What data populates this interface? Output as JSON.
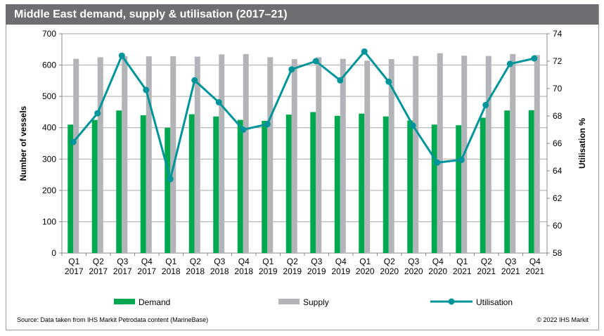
{
  "chart_data": {
    "type": "bar",
    "title": "Middle East demand, supply & utilisation (2017–21)",
    "ylabel": "Number of vessels",
    "y2label": "Utilisation %",
    "ylim": [
      0,
      700
    ],
    "y2lim": [
      58,
      74
    ],
    "yticks": [
      0,
      100,
      200,
      300,
      400,
      500,
      600,
      700
    ],
    "y2ticks": [
      58,
      60,
      62,
      64,
      66,
      68,
      70,
      72,
      74
    ],
    "grid": true,
    "legend": "bottom",
    "categories": [
      [
        "Q1",
        "2017"
      ],
      [
        "Q2",
        "2017"
      ],
      [
        "Q3",
        "2017"
      ],
      [
        "Q4",
        "2017"
      ],
      [
        "Q1",
        "2018"
      ],
      [
        "Q2",
        "2018"
      ],
      [
        "Q3",
        "2018"
      ],
      [
        "Q4",
        "2018"
      ],
      [
        "Q1",
        "2019"
      ],
      [
        "Q2",
        "2019"
      ],
      [
        "Q3",
        "2019"
      ],
      [
        "Q4",
        "2019"
      ],
      [
        "Q1",
        "2020"
      ],
      [
        "Q2",
        "2020"
      ],
      [
        "Q3",
        "2020"
      ],
      [
        "Q4",
        "2020"
      ],
      [
        "Q1",
        "2021"
      ],
      [
        "Q2",
        "2021"
      ],
      [
        "Q3",
        "2021"
      ],
      [
        "Q4",
        "2021"
      ]
    ],
    "series": [
      {
        "name": "Demand",
        "type": "bar",
        "axis": "left",
        "color": "#00a84f",
        "values": [
          410,
          425,
          455,
          440,
          400,
          443,
          436,
          425,
          422,
          442,
          450,
          438,
          445,
          436,
          423,
          410,
          408,
          432,
          455,
          456
        ]
      },
      {
        "name": "Supply",
        "type": "bar",
        "axis": "left",
        "color": "#b3b4b7",
        "values": [
          620,
          625,
          628,
          628,
          628,
          627,
          634,
          635,
          625,
          619,
          625,
          620,
          614,
          619,
          629,
          638,
          630,
          629,
          635,
          632
        ]
      },
      {
        "name": "Utilisation",
        "type": "line",
        "axis": "right",
        "color": "#00959a",
        "values": [
          66.1,
          68.2,
          72.4,
          69.9,
          63.4,
          70.6,
          69.0,
          67.0,
          67.4,
          71.4,
          72.0,
          70.6,
          72.7,
          70.5,
          67.3,
          64.6,
          64.8,
          68.8,
          71.8,
          72.2
        ]
      }
    ]
  },
  "source": "Source: Data taken from IHS Markit Petrodata content (MarineBase)",
  "copyright": "© 2022 IHS Markit"
}
